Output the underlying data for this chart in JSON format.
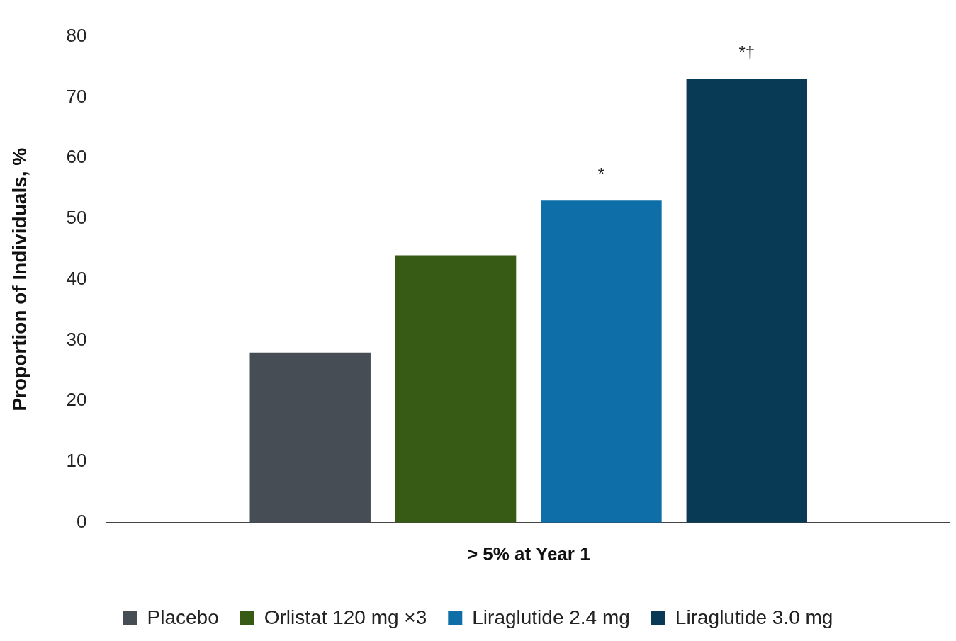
{
  "chart_data": {
    "type": "bar",
    "ylabel": "Proportion of Individuals, %",
    "categories": [
      "> 5% at Year 1"
    ],
    "series": [
      {
        "name": "Placebo",
        "color": "#464d55",
        "values": [
          28
        ]
      },
      {
        "name": "Orlistat 120 mg ×3",
        "color": "#375b14",
        "values": [
          44
        ]
      },
      {
        "name": "Liraglutide 2.4 mg",
        "color": "#0d6ea8",
        "values": [
          53
        ],
        "value_labels": [
          "*"
        ]
      },
      {
        "name": "Liraglutide 3.0 mg",
        "color": "#083a55",
        "values": [
          73
        ],
        "value_labels": [
          "*†"
        ]
      }
    ],
    "ylim": [
      0,
      80
    ],
    "yticks": [
      0,
      10,
      20,
      30,
      40,
      50,
      60,
      70,
      80
    ],
    "grid": false,
    "legend": "bottom"
  }
}
